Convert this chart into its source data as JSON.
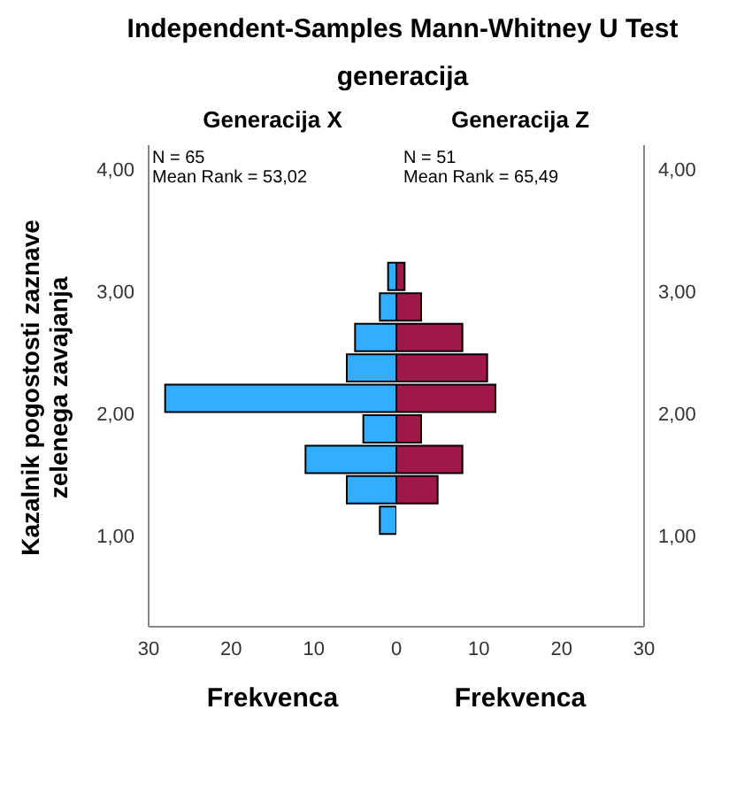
{
  "chart_data": [
    {
      "type": "histogram",
      "title": "Independent-Samples Mann-Whitney U Test",
      "subtitle": "generacija",
      "legend_title": "Generacija X",
      "ylabel": "Kazalnik pogostosti zaznave zelenega zavajanja",
      "xlabel": "Frekvenca",
      "orientation": "horizontal",
      "bins": [
        1,
        1.25,
        1.5,
        1.75,
        2,
        2.25,
        2.5,
        2.75,
        3,
        3.25
      ],
      "values": [
        2,
        6,
        11,
        4,
        28,
        6,
        5,
        2,
        1
      ],
      "color": "#33adff",
      "xlim": [
        30,
        0
      ],
      "xticks": [
        30,
        20,
        10,
        0
      ],
      "ylim": [
        0.25,
        4.2
      ],
      "yticks": [
        {
          "value": 1,
          "label": "1,00"
        },
        {
          "value": 2,
          "label": "2,00"
        },
        {
          "value": 3,
          "label": "3,00"
        },
        {
          "value": 4,
          "label": "4,00"
        }
      ],
      "annotations": [
        "N = 65",
        "Mean Rank = 53,02"
      ]
    },
    {
      "type": "histogram",
      "legend_title": "Generacija Z",
      "xlabel": "Frekvenca",
      "orientation": "horizontal",
      "bins": [
        1,
        1.25,
        1.5,
        1.75,
        2,
        2.25,
        2.5,
        2.75,
        3,
        3.25
      ],
      "values": [
        0,
        5,
        8,
        3,
        12,
        11,
        8,
        3,
        1
      ],
      "color": "#a0174a",
      "xlim": [
        0,
        30
      ],
      "xticks": [
        10,
        20,
        30
      ],
      "ylim": [
        0.25,
        4.2
      ],
      "yticks": [
        {
          "value": 1,
          "label": "1,00"
        },
        {
          "value": 2,
          "label": "2,00"
        },
        {
          "value": 3,
          "label": "3,00"
        },
        {
          "value": 4,
          "label": "4,00"
        }
      ],
      "annotations": [
        "N = 51",
        "Mean Rank = 65,49"
      ]
    }
  ]
}
